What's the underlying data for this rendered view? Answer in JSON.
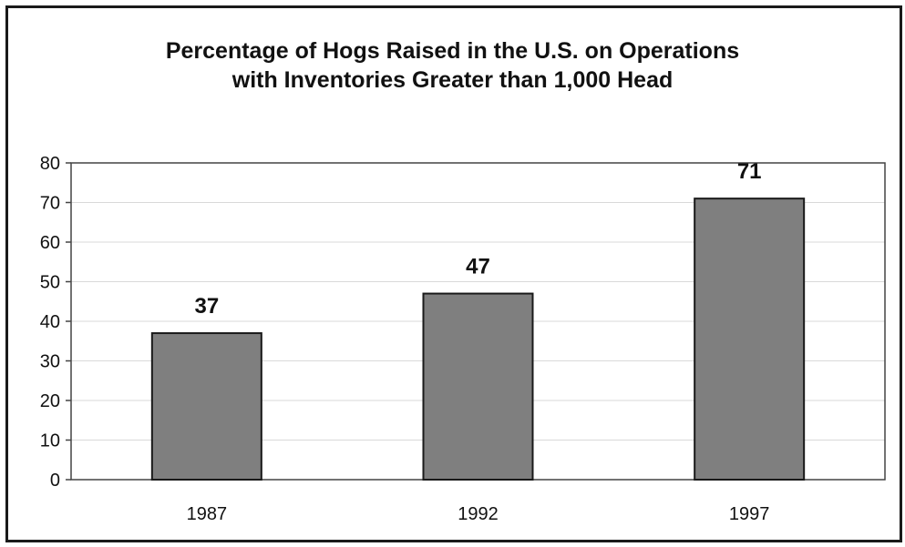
{
  "chart_data": {
    "type": "bar",
    "title": [
      "Percentage of Hogs Raised in the U.S. on Operations",
      "with Inventories Greater than 1,000 Head"
    ],
    "categories": [
      "1987",
      "1992",
      "1997"
    ],
    "values": [
      37,
      47,
      71
    ],
    "value_labels": [
      "37",
      "47",
      "71"
    ],
    "ylim": [
      0,
      80
    ],
    "yticks": [
      0,
      10,
      20,
      30,
      40,
      50,
      60,
      70,
      80
    ],
    "xlabel": "",
    "ylabel": "",
    "grid": true,
    "legend": "none",
    "bar_color": "#7f7f7f",
    "bar_edge_color": "#1a1a1a",
    "grid_color": "#d9d9d9",
    "axis_color": "#444444"
  }
}
